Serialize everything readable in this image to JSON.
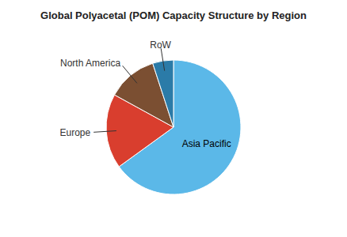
{
  "chart_data": {
    "type": "pie",
    "title": "Global Polyacetal (POM) Capacity Structure by Region",
    "categories": [
      "Asia Pacific",
      "Europe",
      "North America",
      "RoW"
    ],
    "values": [
      65,
      18,
      12,
      5
    ],
    "colors": [
      "#5BB8E8",
      "#D93E2E",
      "#7B4F32",
      "#2B7BA8"
    ]
  }
}
